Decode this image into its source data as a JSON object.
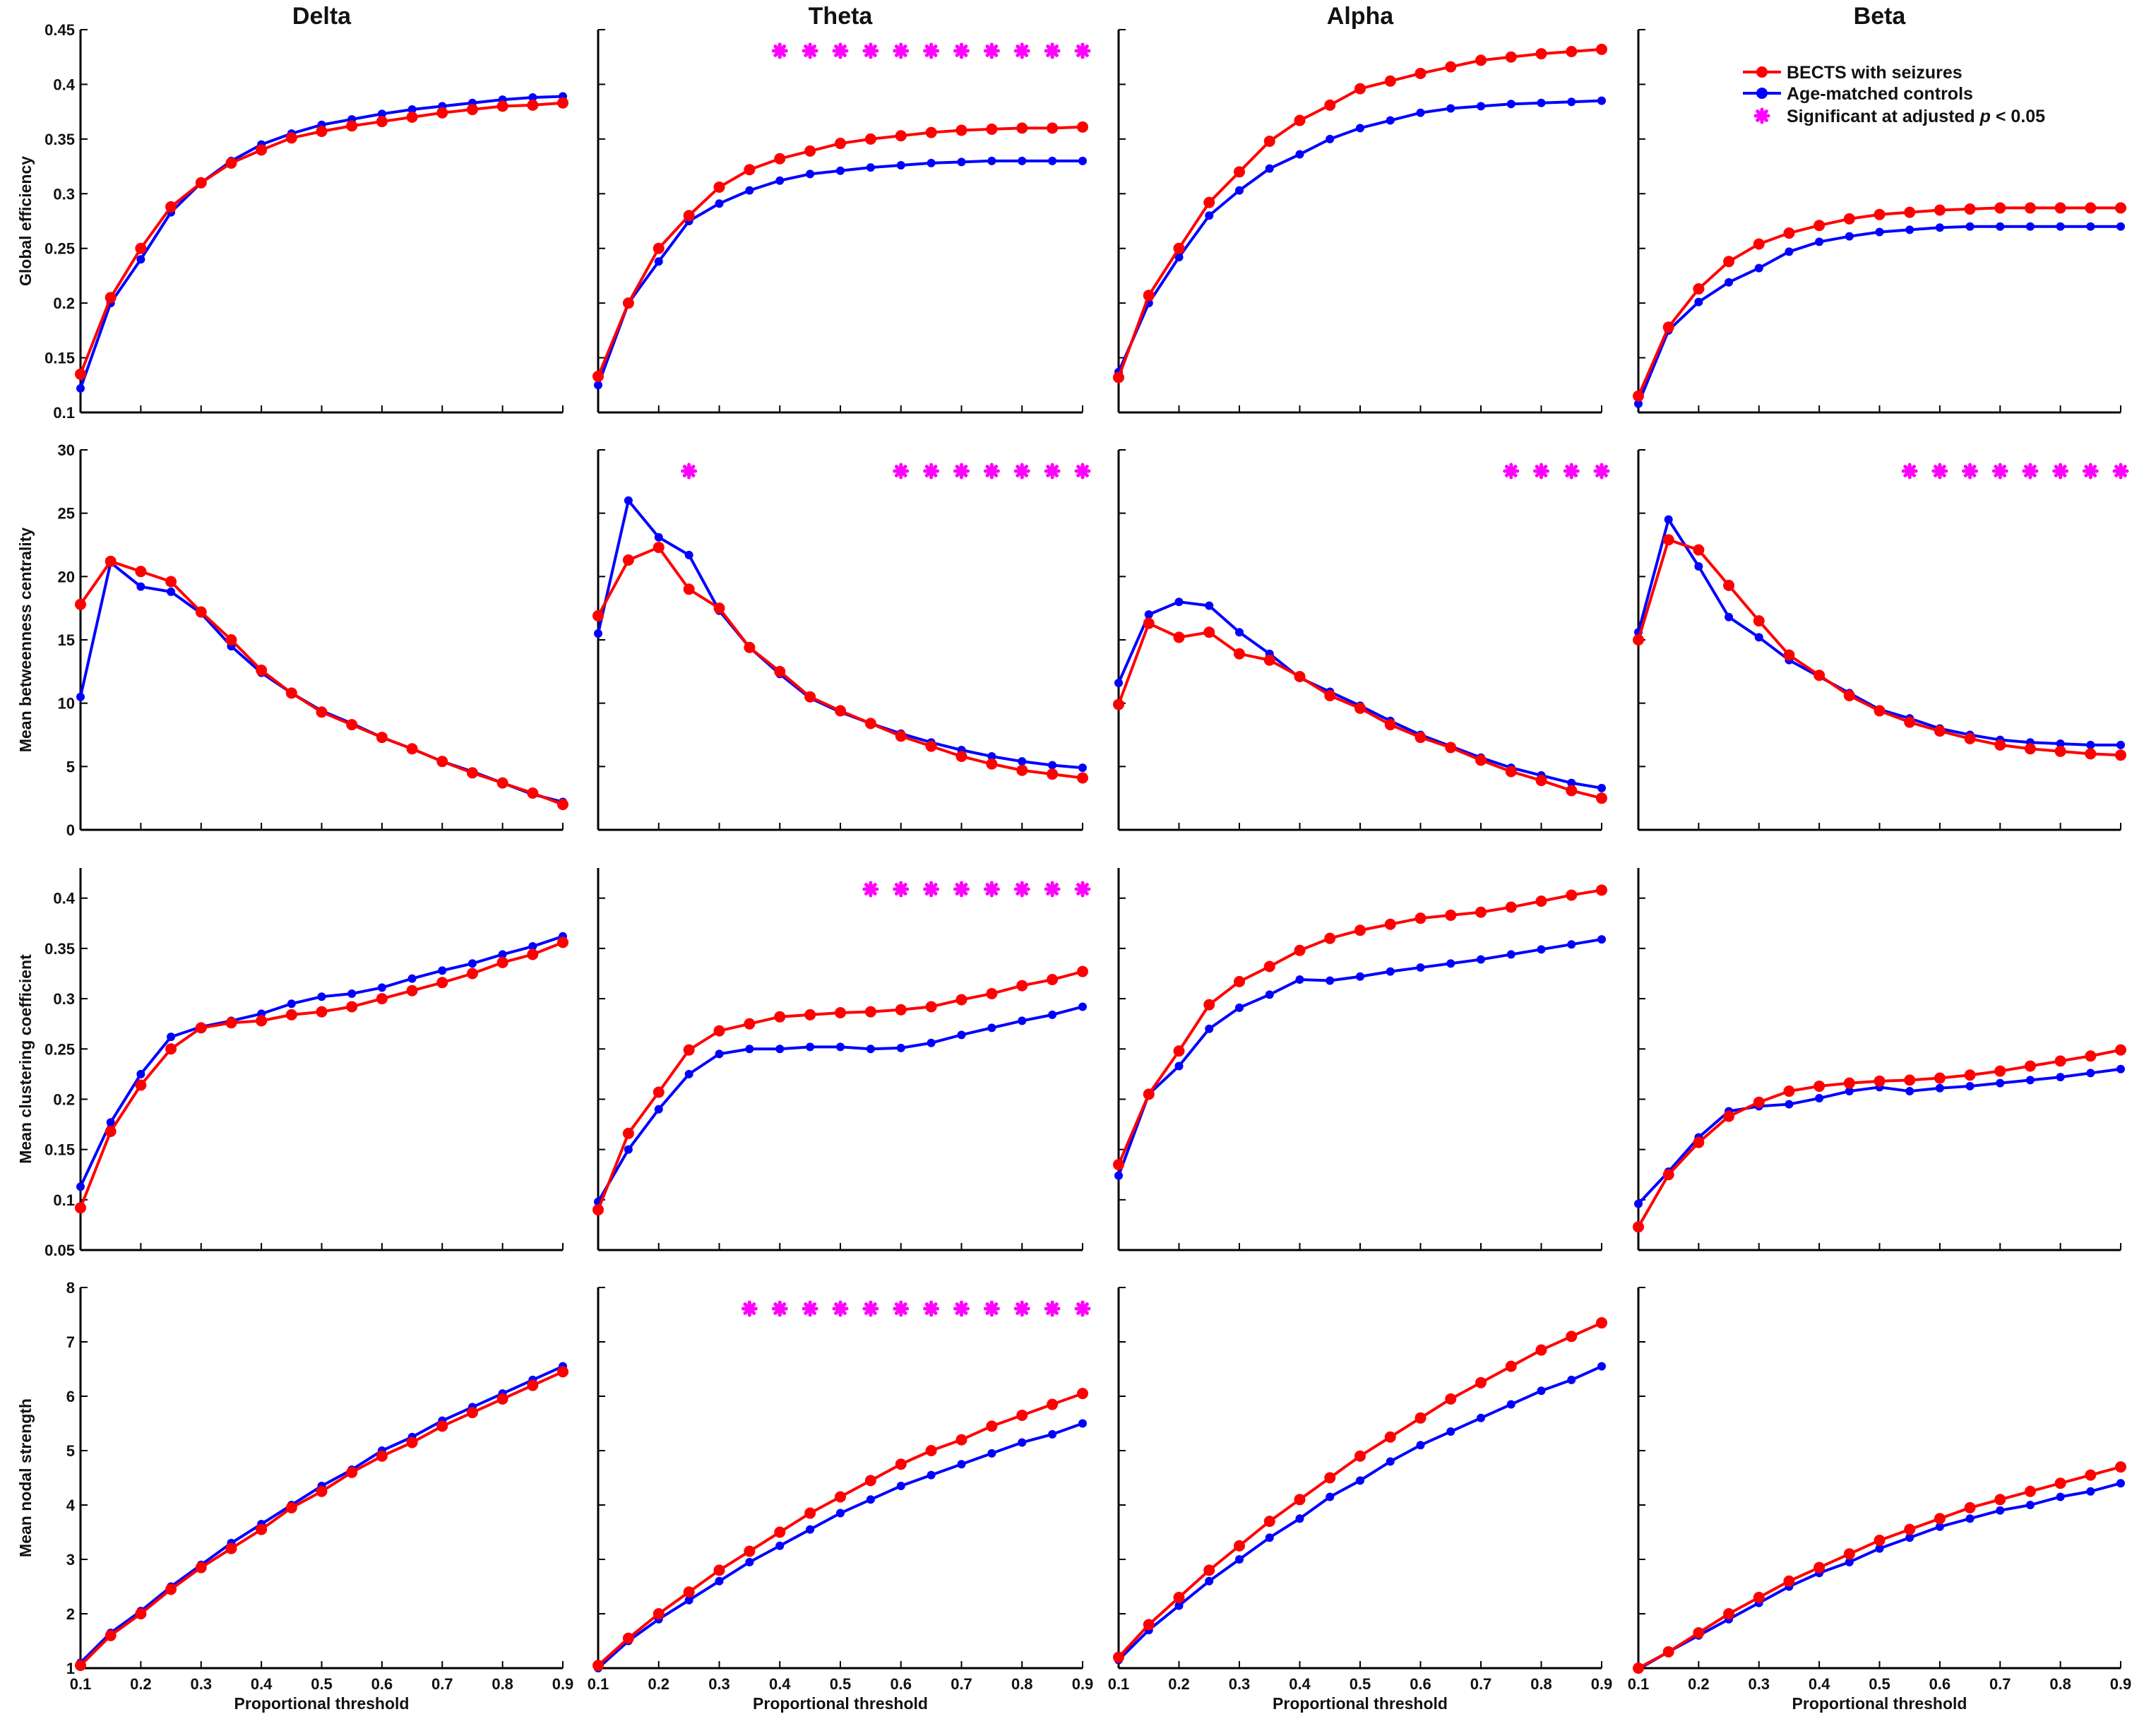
{
  "chart_data": {
    "type": "line",
    "columns": [
      "Delta",
      "Theta",
      "Alpha",
      "Beta"
    ],
    "rows": [
      {
        "ylabel": "Global efficiency",
        "ylim": [
          0.1,
          0.45
        ],
        "yticks": [
          0.1,
          0.15,
          0.2,
          0.25,
          0.3,
          0.35,
          0.4,
          0.45
        ],
        "ytick_labels": [
          "0.1",
          "0.15",
          "0.2",
          "0.25",
          "0.3",
          "0.35",
          "0.4",
          "0.45"
        ]
      },
      {
        "ylabel": "Mean betweenness centrality",
        "ylim": [
          0,
          30
        ],
        "yticks": [
          0,
          5,
          10,
          15,
          20,
          25,
          30
        ],
        "ytick_labels": [
          "0",
          "5",
          "10",
          "15",
          "20",
          "25",
          "30"
        ]
      },
      {
        "ylabel": "Mean clustering coefficient",
        "ylim": [
          0.05,
          0.43
        ],
        "yticks": [
          0.05,
          0.1,
          0.15,
          0.2,
          0.25,
          0.3,
          0.35,
          0.4
        ],
        "ytick_labels": [
          "0.05",
          "0.1",
          "0.15",
          "0.2",
          "0.25",
          "0.3",
          "0.35",
          "0.4"
        ]
      },
      {
        "ylabel": "Mean nodal strength",
        "ylim": [
          1,
          8
        ],
        "yticks": [
          1,
          2,
          3,
          4,
          5,
          6,
          7,
          8
        ],
        "ytick_labels": [
          "1",
          "2",
          "3",
          "4",
          "5",
          "6",
          "7",
          "8"
        ]
      }
    ],
    "x": [
      0.1,
      0.15,
      0.2,
      0.25,
      0.3,
      0.35,
      0.4,
      0.45,
      0.5,
      0.55,
      0.6,
      0.65,
      0.7,
      0.75,
      0.8,
      0.85,
      0.9
    ],
    "xlim": [
      0.1,
      0.9
    ],
    "xticks": [
      0.1,
      0.2,
      0.3,
      0.4,
      0.5,
      0.6,
      0.7,
      0.8,
      0.9
    ],
    "xtick_labels": [
      "0.1",
      "0.2",
      "0.3",
      "0.4",
      "0.5",
      "0.6",
      "0.7",
      "0.8",
      "0.9"
    ],
    "xlabel": "Proportional threshold",
    "legend": {
      "placement": "top-right",
      "entries": [
        {
          "name": "BECTS with seizures",
          "color": "#ff0000"
        },
        {
          "name": "Age-matched controls",
          "color": "#0000ff"
        },
        {
          "name": "Significant at adjusted p < 0.05",
          "prefix": "Significant at adjusted ",
          "italic": "p",
          "suffix": " < 0.05",
          "color": "#ff00ff"
        }
      ]
    },
    "series_names": [
      "BECTS with seizures",
      "Age-matched controls"
    ],
    "series_colors": [
      "#ff0000",
      "#0000ff"
    ],
    "significance_color": "#ff00ff",
    "panels": [
      [
        {
          "becs": [
            0.135,
            0.205,
            0.25,
            0.288,
            0.31,
            0.328,
            0.34,
            0.351,
            0.357,
            0.362,
            0.366,
            0.37,
            0.374,
            0.377,
            0.38,
            0.381,
            0.383
          ],
          "ctrl": [
            0.122,
            0.2,
            0.24,
            0.283,
            0.31,
            0.33,
            0.345,
            0.355,
            0.363,
            0.368,
            0.373,
            0.377,
            0.38,
            0.383,
            0.386,
            0.388,
            0.389
          ],
          "sig": []
        },
        {
          "becs": [
            17.8,
            21.2,
            20.4,
            19.6,
            17.2,
            15.0,
            12.6,
            10.8,
            9.3,
            8.3,
            7.3,
            6.4,
            5.4,
            4.5,
            3.7,
            2.9,
            2.0
          ],
          "ctrl": [
            10.5,
            21.1,
            19.2,
            18.8,
            17.1,
            14.5,
            12.4,
            10.8,
            9.4,
            8.4,
            7.3,
            6.4,
            5.4,
            4.6,
            3.7,
            2.8,
            2.2
          ],
          "sig": []
        },
        {
          "becs": [
            0.092,
            0.168,
            0.214,
            0.25,
            0.271,
            0.276,
            0.278,
            0.284,
            0.287,
            0.292,
            0.3,
            0.308,
            0.316,
            0.325,
            0.336,
            0.344,
            0.356
          ],
          "ctrl": [
            0.113,
            0.177,
            0.225,
            0.262,
            0.272,
            0.278,
            0.285,
            0.295,
            0.302,
            0.305,
            0.311,
            0.32,
            0.328,
            0.335,
            0.344,
            0.352,
            0.362
          ],
          "sig": []
        },
        {
          "becs": [
            1.05,
            1.6,
            2.0,
            2.45,
            2.85,
            3.2,
            3.55,
            3.95,
            4.25,
            4.6,
            4.9,
            5.15,
            5.45,
            5.7,
            5.95,
            6.2,
            6.45
          ],
          "ctrl": [
            1.1,
            1.65,
            2.05,
            2.5,
            2.9,
            3.3,
            3.65,
            4.0,
            4.35,
            4.65,
            5.0,
            5.25,
            5.55,
            5.8,
            6.05,
            6.3,
            6.55
          ],
          "sig": []
        }
      ],
      [
        {
          "becs": [
            0.133,
            0.2,
            0.25,
            0.28,
            0.306,
            0.322,
            0.332,
            0.339,
            0.346,
            0.35,
            0.353,
            0.356,
            0.358,
            0.359,
            0.36,
            0.36,
            0.361
          ],
          "ctrl": [
            0.125,
            0.2,
            0.238,
            0.275,
            0.291,
            0.303,
            0.312,
            0.318,
            0.321,
            0.324,
            0.326,
            0.328,
            0.329,
            0.33,
            0.33,
            0.33,
            0.33
          ],
          "sig": [
            0.4,
            0.45,
            0.5,
            0.55,
            0.6,
            0.65,
            0.7,
            0.75,
            0.8,
            0.85,
            0.9
          ]
        },
        {
          "becs": [
            16.9,
            21.3,
            22.3,
            19.0,
            17.5,
            14.4,
            12.5,
            10.5,
            9.4,
            8.4,
            7.4,
            6.6,
            5.8,
            5.2,
            4.7,
            4.4,
            4.1
          ],
          "ctrl": [
            15.5,
            26.0,
            23.1,
            21.7,
            17.3,
            14.4,
            12.3,
            10.4,
            9.3,
            8.4,
            7.6,
            6.9,
            6.3,
            5.8,
            5.4,
            5.1,
            4.9
          ],
          "sig": [
            0.25,
            0.6,
            0.65,
            0.7,
            0.75,
            0.8,
            0.85,
            0.9
          ]
        },
        {
          "becs": [
            0.09,
            0.166,
            0.207,
            0.249,
            0.268,
            0.275,
            0.282,
            0.284,
            0.286,
            0.287,
            0.289,
            0.292,
            0.299,
            0.305,
            0.313,
            0.319,
            0.327
          ],
          "ctrl": [
            0.098,
            0.15,
            0.19,
            0.225,
            0.245,
            0.25,
            0.25,
            0.252,
            0.252,
            0.25,
            0.251,
            0.256,
            0.264,
            0.271,
            0.278,
            0.284,
            0.292
          ],
          "sig": [
            0.55,
            0.6,
            0.65,
            0.7,
            0.75,
            0.8,
            0.85,
            0.9
          ]
        },
        {
          "becs": [
            1.05,
            1.55,
            2.0,
            2.4,
            2.8,
            3.15,
            3.5,
            3.85,
            4.15,
            4.45,
            4.75,
            5.0,
            5.2,
            5.45,
            5.65,
            5.85,
            6.05
          ],
          "ctrl": [
            1.0,
            1.5,
            1.9,
            2.25,
            2.6,
            2.95,
            3.25,
            3.55,
            3.85,
            4.1,
            4.35,
            4.55,
            4.75,
            4.95,
            5.15,
            5.3,
            5.5
          ],
          "sig": [
            0.35,
            0.4,
            0.45,
            0.5,
            0.55,
            0.6,
            0.65,
            0.7,
            0.75,
            0.8,
            0.85,
            0.9
          ]
        }
      ],
      [
        {
          "becs": [
            0.132,
            0.207,
            0.25,
            0.292,
            0.32,
            0.348,
            0.367,
            0.381,
            0.396,
            0.403,
            0.41,
            0.416,
            0.422,
            0.425,
            0.428,
            0.43,
            0.432
          ],
          "ctrl": [
            0.137,
            0.2,
            0.242,
            0.28,
            0.303,
            0.323,
            0.336,
            0.35,
            0.36,
            0.367,
            0.374,
            0.378,
            0.38,
            0.382,
            0.383,
            0.384,
            0.385
          ],
          "sig": []
        },
        {
          "becs": [
            9.9,
            16.3,
            15.2,
            15.6,
            13.9,
            13.4,
            12.1,
            10.6,
            9.6,
            8.3,
            7.3,
            6.5,
            5.5,
            4.6,
            3.9,
            3.1,
            2.5
          ],
          "ctrl": [
            11.6,
            17.0,
            18.0,
            17.7,
            15.6,
            13.9,
            12.0,
            10.9,
            9.8,
            8.6,
            7.5,
            6.6,
            5.7,
            4.9,
            4.3,
            3.7,
            3.3
          ],
          "sig": [
            0.75,
            0.8,
            0.85,
            0.9
          ]
        },
        {
          "becs": [
            0.135,
            0.205,
            0.248,
            0.294,
            0.317,
            0.332,
            0.348,
            0.36,
            0.368,
            0.374,
            0.38,
            0.383,
            0.386,
            0.391,
            0.397,
            0.403,
            0.408
          ],
          "ctrl": [
            0.124,
            0.205,
            0.233,
            0.27,
            0.291,
            0.304,
            0.319,
            0.318,
            0.322,
            0.327,
            0.331,
            0.335,
            0.339,
            0.344,
            0.349,
            0.354,
            0.359
          ],
          "sig": []
        },
        {
          "becs": [
            1.2,
            1.8,
            2.3,
            2.8,
            3.25,
            3.7,
            4.1,
            4.5,
            4.9,
            5.25,
            5.6,
            5.95,
            6.25,
            6.55,
            6.85,
            7.1,
            7.35
          ],
          "ctrl": [
            1.15,
            1.7,
            2.15,
            2.6,
            3.0,
            3.4,
            3.75,
            4.15,
            4.45,
            4.8,
            5.1,
            5.35,
            5.6,
            5.85,
            6.1,
            6.3,
            6.55
          ],
          "sig": []
        }
      ],
      [
        {
          "becs": [
            0.115,
            0.178,
            0.213,
            0.238,
            0.254,
            0.264,
            0.271,
            0.277,
            0.281,
            0.283,
            0.285,
            0.286,
            0.287,
            0.287,
            0.287,
            0.287,
            0.287
          ],
          "ctrl": [
            0.108,
            0.175,
            0.201,
            0.219,
            0.232,
            0.247,
            0.256,
            0.261,
            0.265,
            0.267,
            0.269,
            0.27,
            0.27,
            0.27,
            0.27,
            0.27,
            0.27
          ],
          "sig": []
        },
        {
          "becs": [
            15.0,
            22.9,
            22.1,
            19.3,
            16.5,
            13.8,
            12.2,
            10.6,
            9.4,
            8.5,
            7.8,
            7.2,
            6.7,
            6.4,
            6.2,
            6.0,
            5.9
          ],
          "ctrl": [
            15.6,
            24.5,
            20.8,
            16.8,
            15.2,
            13.4,
            12.1,
            10.8,
            9.5,
            8.8,
            8.0,
            7.5,
            7.1,
            6.9,
            6.8,
            6.7,
            6.7
          ],
          "sig": [
            0.55,
            0.6,
            0.65,
            0.7,
            0.75,
            0.8,
            0.85,
            0.9
          ]
        },
        {
          "becs": [
            0.073,
            0.125,
            0.157,
            0.183,
            0.197,
            0.208,
            0.213,
            0.216,
            0.218,
            0.219,
            0.221,
            0.224,
            0.228,
            0.233,
            0.238,
            0.243,
            0.249
          ],
          "ctrl": [
            0.096,
            0.128,
            0.162,
            0.188,
            0.193,
            0.195,
            0.201,
            0.208,
            0.212,
            0.208,
            0.211,
            0.213,
            0.216,
            0.219,
            0.222,
            0.226,
            0.23
          ],
          "sig": []
        },
        {
          "becs": [
            1.0,
            1.3,
            1.65,
            2.0,
            2.3,
            2.6,
            2.85,
            3.1,
            3.35,
            3.55,
            3.75,
            3.95,
            4.1,
            4.25,
            4.4,
            4.55,
            4.7
          ],
          "ctrl": [
            0.98,
            1.3,
            1.6,
            1.9,
            2.2,
            2.5,
            2.75,
            2.95,
            3.2,
            3.4,
            3.6,
            3.75,
            3.9,
            4.0,
            4.15,
            4.25,
            4.4
          ],
          "sig": []
        }
      ]
    ]
  }
}
